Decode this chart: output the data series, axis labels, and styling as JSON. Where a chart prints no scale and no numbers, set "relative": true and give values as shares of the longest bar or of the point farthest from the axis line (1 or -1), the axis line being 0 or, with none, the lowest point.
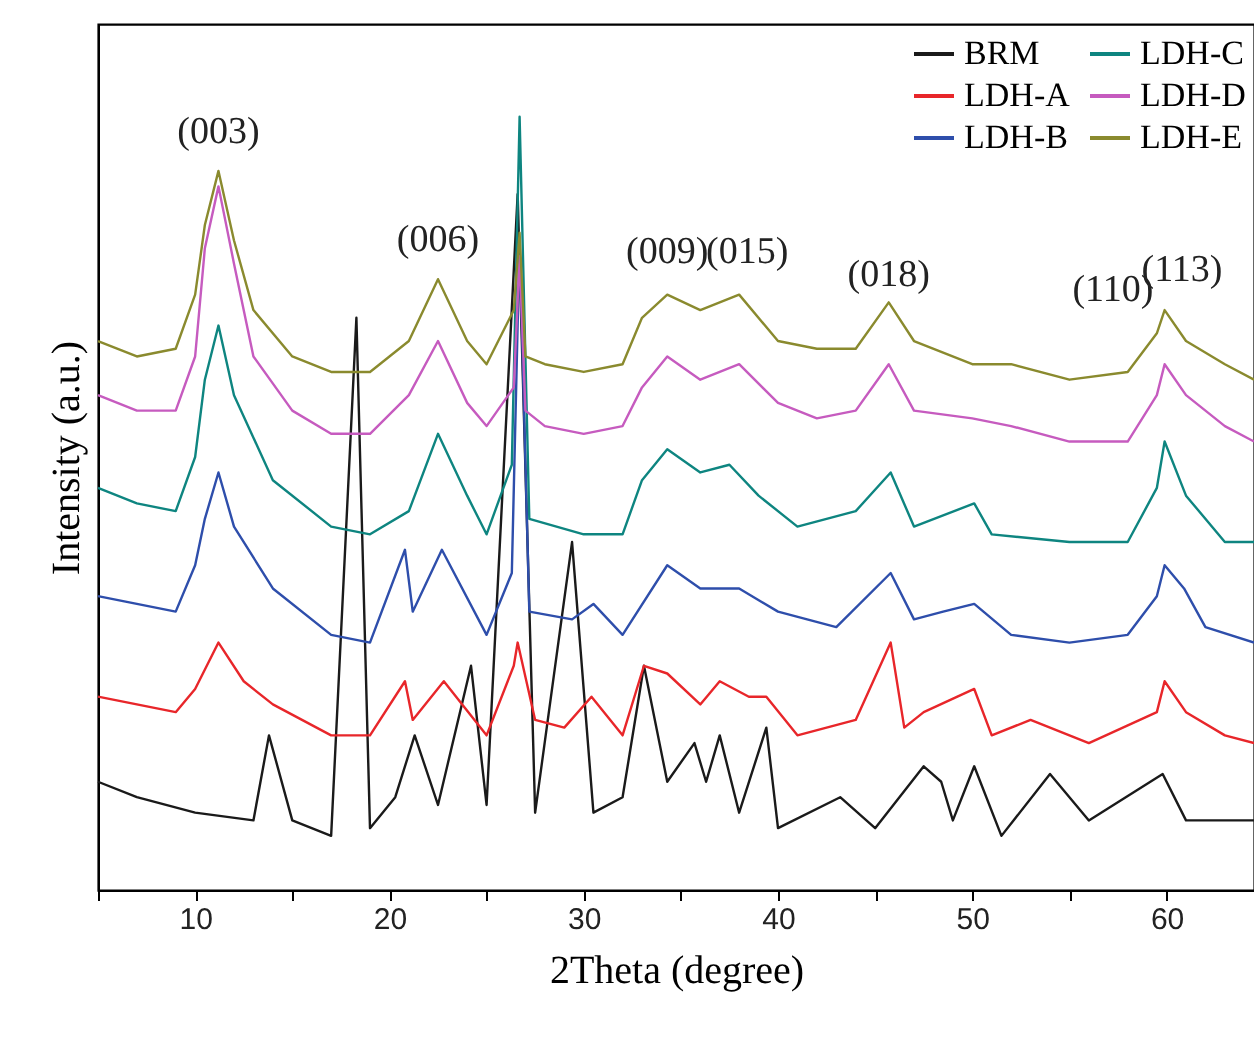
{
  "chart_data": {
    "type": "line",
    "relative": true,
    "xlabel": "2Theta (degree)",
    "ylabel": "Intensity (a.u.)",
    "xlim": [
      5,
      64.5
    ],
    "xticks": [
      {
        "value": 5,
        "label": null
      },
      10,
      {
        "value": 15,
        "label": null
      },
      20,
      {
        "value": 25,
        "label": null
      },
      30,
      {
        "value": 35,
        "label": null
      },
      40,
      {
        "value": 45,
        "label": null
      },
      50,
      {
        "value": 55,
        "label": null
      },
      60
    ],
    "tick_labels": "x",
    "legend": "top right",
    "grid": false,
    "series": [
      {
        "name": "BRM",
        "color": "#1a1a1a",
        "x": [
          5,
          7,
          10,
          13,
          13.8,
          15,
          17,
          18.3,
          19,
          20.3,
          21.3,
          22.5,
          24.2,
          25,
          26.6,
          27.5,
          29.4,
          30.5,
          32,
          33.1,
          34.3,
          35.7,
          36.3,
          37,
          38,
          39.4,
          40,
          43.2,
          45,
          47.5,
          48.4,
          49,
          50.1,
          51.5,
          54,
          56,
          59.8,
          61,
          64.5
        ],
        "values": [
          0.14,
          0.12,
          0.1,
          0.09,
          0.2,
          0.09,
          0.07,
          0.74,
          0.08,
          0.12,
          0.2,
          0.11,
          0.29,
          0.11,
          0.9,
          0.1,
          0.45,
          0.1,
          0.12,
          0.29,
          0.14,
          0.19,
          0.14,
          0.2,
          0.1,
          0.21,
          0.08,
          0.12,
          0.08,
          0.16,
          0.14,
          0.09,
          0.16,
          0.07,
          0.15,
          0.09,
          0.15,
          0.09,
          0.09
        ]
      },
      {
        "name": "LDH-A",
        "color": "#e8262a",
        "x": [
          5,
          7,
          9,
          10,
          11.2,
          12.5,
          14,
          17,
          19,
          20.8,
          21.2,
          22.8,
          25,
          26.4,
          26.6,
          27.5,
          29,
          30.4,
          32,
          33.1,
          34.3,
          36,
          37,
          38.5,
          39.4,
          41,
          44,
          45.8,
          46.5,
          47.5,
          50.1,
          51,
          53,
          56,
          59.5,
          59.9,
          61,
          63,
          64.5
        ],
        "values": [
          0.25,
          0.24,
          0.23,
          0.26,
          0.32,
          0.27,
          0.24,
          0.2,
          0.2,
          0.27,
          0.22,
          0.27,
          0.2,
          0.29,
          0.32,
          0.22,
          0.21,
          0.25,
          0.2,
          0.29,
          0.28,
          0.24,
          0.27,
          0.25,
          0.25,
          0.2,
          0.22,
          0.32,
          0.21,
          0.23,
          0.26,
          0.2,
          0.22,
          0.19,
          0.23,
          0.27,
          0.23,
          0.2,
          0.19
        ]
      },
      {
        "name": "LDH-B",
        "color": "#2e4eab",
        "x": [
          5,
          7,
          9,
          10,
          10.5,
          11.2,
          12,
          14,
          17,
          19,
          20.8,
          21.2,
          22.7,
          25,
          26.3,
          26.7,
          27.2,
          29.4,
          30.5,
          32,
          34.3,
          36,
          38,
          40,
          43,
          45.8,
          47,
          48.5,
          50.1,
          52,
          55,
          58,
          59.5,
          59.9,
          60.9,
          62,
          64.5
        ],
        "values": [
          0.38,
          0.37,
          0.36,
          0.42,
          0.48,
          0.54,
          0.47,
          0.39,
          0.33,
          0.32,
          0.44,
          0.36,
          0.44,
          0.33,
          0.41,
          0.84,
          0.36,
          0.35,
          0.37,
          0.33,
          0.42,
          0.39,
          0.39,
          0.36,
          0.34,
          0.41,
          0.35,
          0.36,
          0.37,
          0.33,
          0.32,
          0.33,
          0.38,
          0.42,
          0.39,
          0.34,
          0.32
        ]
      },
      {
        "name": "LDH-C",
        "color": "#0e8580",
        "x": [
          5,
          7,
          9,
          10,
          10.5,
          11.2,
          12,
          14,
          17,
          19,
          21,
          22.5,
          24,
          25,
          26.3,
          26.7,
          27.2,
          30,
          32,
          33,
          34.3,
          36,
          37.5,
          39,
          41,
          44,
          45.8,
          47,
          50.1,
          51,
          55,
          58,
          59.5,
          59.9,
          61,
          63,
          64.5
        ],
        "values": [
          0.52,
          0.5,
          0.49,
          0.56,
          0.66,
          0.73,
          0.64,
          0.53,
          0.47,
          0.46,
          0.49,
          0.59,
          0.51,
          0.46,
          0.55,
          1.0,
          0.48,
          0.46,
          0.46,
          0.53,
          0.57,
          0.54,
          0.55,
          0.51,
          0.47,
          0.49,
          0.54,
          0.47,
          0.5,
          0.46,
          0.45,
          0.45,
          0.52,
          0.58,
          0.51,
          0.45,
          0.45
        ]
      },
      {
        "name": "LDH-D",
        "color": "#c65bbf",
        "x": [
          5,
          7,
          9,
          10,
          10.5,
          11.2,
          12,
          13,
          15,
          17,
          19,
          21,
          22.5,
          24,
          25,
          26.4,
          26.7,
          27,
          28,
          30,
          32,
          33,
          34.3,
          36,
          38,
          40,
          42,
          44,
          45.7,
          47,
          50,
          52,
          55,
          58,
          59.5,
          59.9,
          61,
          63,
          64.5
        ],
        "values": [
          0.64,
          0.62,
          0.62,
          0.69,
          0.83,
          0.91,
          0.81,
          0.69,
          0.62,
          0.59,
          0.59,
          0.64,
          0.71,
          0.63,
          0.6,
          0.65,
          0.82,
          0.62,
          0.6,
          0.59,
          0.6,
          0.65,
          0.69,
          0.66,
          0.68,
          0.63,
          0.61,
          0.62,
          0.68,
          0.62,
          0.61,
          0.6,
          0.58,
          0.58,
          0.64,
          0.68,
          0.64,
          0.6,
          0.58
        ]
      },
      {
        "name": "LDH-E",
        "color": "#8a8a2e",
        "x": [
          5,
          7,
          9,
          10,
          10.5,
          11.2,
          12,
          13,
          15,
          17,
          19,
          21,
          22.5,
          24,
          25,
          26.4,
          26.7,
          27,
          28,
          30,
          32,
          33,
          34.3,
          36,
          38,
          40,
          42,
          44,
          45.7,
          47,
          50,
          52,
          55,
          58,
          59.5,
          59.9,
          61,
          63,
          64.5
        ],
        "values": [
          0.71,
          0.69,
          0.7,
          0.77,
          0.86,
          0.93,
          0.84,
          0.75,
          0.69,
          0.67,
          0.67,
          0.71,
          0.79,
          0.71,
          0.68,
          0.75,
          0.85,
          0.69,
          0.68,
          0.67,
          0.68,
          0.74,
          0.77,
          0.75,
          0.77,
          0.71,
          0.7,
          0.7,
          0.76,
          0.71,
          0.68,
          0.68,
          0.66,
          0.67,
          0.72,
          0.75,
          0.71,
          0.68,
          0.66
        ]
      }
    ],
    "annotations": [
      {
        "text": "(003)",
        "x": 11.2,
        "y": 0.93
      },
      {
        "text": "(006)",
        "x": 22.5,
        "y": 0.79
      },
      {
        "text": "(009)",
        "x": 34.3,
        "y": 0.77
      },
      {
        "text": "(015)",
        "x": 38,
        "y": 0.77
      },
      {
        "text": "(018)",
        "x": 45.7,
        "y": 0.76
      },
      {
        "text": "(110)",
        "x": 59.5,
        "y": 0.72
      },
      {
        "text": "(113)",
        "x": 61,
        "y": 0.71
      }
    ]
  }
}
